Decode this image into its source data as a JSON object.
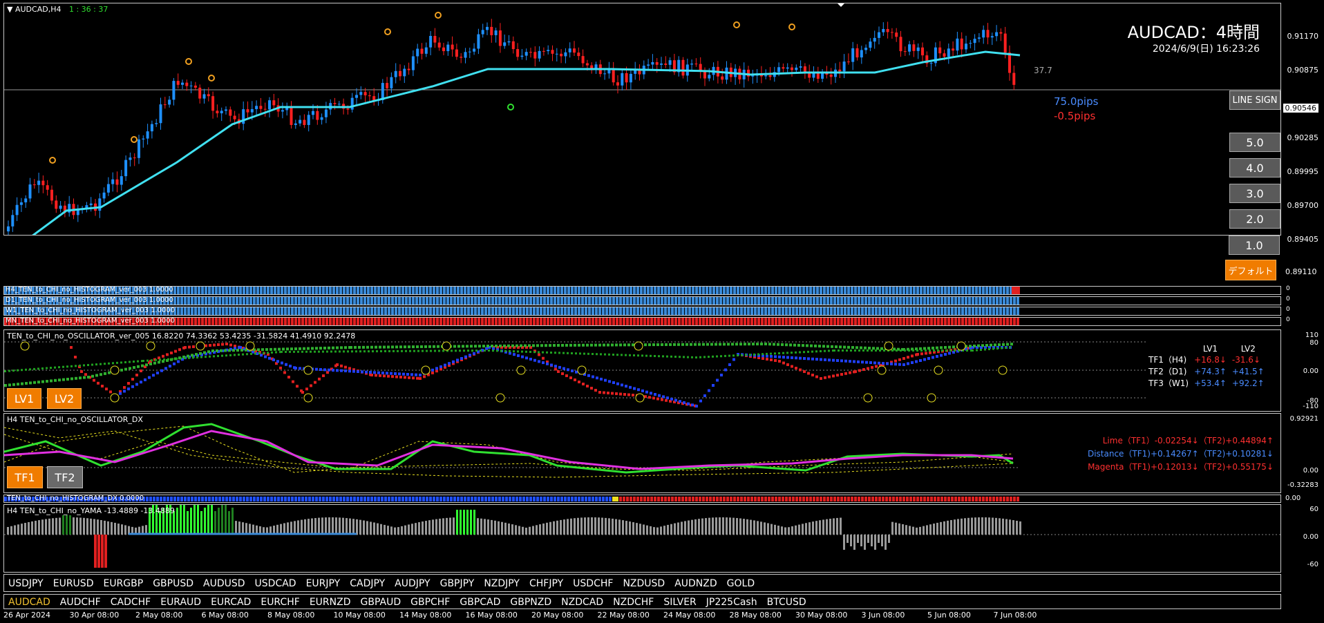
{
  "chart_title": "AUDCAD,H4",
  "countdown": "1 : 36 : 37",
  "symbol_title": "AUDCAD：4時間",
  "datetime": "2024/6/9(日) 16:23:26",
  "spread": "37.7",
  "pips_blue": "75.0pips",
  "pips_red": "-0.5pips",
  "current_price": "0.90546",
  "price_ticks": [
    "0.91170",
    "0.90875",
    "0.90546",
    "0.90285",
    "0.89995",
    "0.89700",
    "0.89405",
    "0.89110"
  ],
  "side_buttons": {
    "line_sign": "LINE SIGN",
    "b5": "5.0",
    "b4": "4.0",
    "b3": "3.0",
    "b2": "2.0",
    "b1": "1.0",
    "default": "デフォルト"
  },
  "histograms": [
    {
      "label": "H4_TEN_to_CHI_no_HISTOGRAM_ver_003 1.0000",
      "scale": "0"
    },
    {
      "label": "D1_TEN_to_CHI_no_HISTOGRAM_ver_003 1.0000",
      "scale": "0"
    },
    {
      "label": "W1_TEN_to_CHI_no_HISTOGRAM_ver_003 1.0000",
      "scale": "0"
    },
    {
      "label": "MN_TEN_to_CHI_no_HISTOGRAM_ver_003 1.0000",
      "scale": "0"
    }
  ],
  "oscillator": {
    "label": "TEN_to_CHI_no_OSCILLATOR_ver_005 16.8220 74.3362 53.4235 -31.5824 41.4910 92.2478",
    "ticks": [
      "110",
      "80",
      "0.00",
      "-80",
      "-110"
    ],
    "lv1": "LV1",
    "lv2": "LV2",
    "header": {
      "lv1": "LV1",
      "lv2": "LV2"
    },
    "rows": [
      {
        "tf": "TF1（H4)",
        "v1": "+16.8↓",
        "v2": "-31.6↓",
        "c1": "#ff3030",
        "c2": "#ff3030"
      },
      {
        "tf": "TF2（D1)",
        "v1": "+74.3↑",
        "v2": "+41.5↑",
        "c1": "#4a8cff",
        "c2": "#4a8cff"
      },
      {
        "tf": "TF3（W1)",
        "v1": "+53.4↑",
        "v2": "+92.2↑",
        "c1": "#4a8cff",
        "c2": "#4a8cff"
      }
    ]
  },
  "dx": {
    "label": "H4 TEN_to_CHI_no_OSCILLATOR_DX",
    "ticks": [
      "0.92921",
      "0.00",
      "-0.32283"
    ],
    "tf1": "TF1",
    "tf2": "TF2",
    "lines": [
      {
        "text": "Lime（TF1）-0.02254↓（TF2)+0.44894↑",
        "color": "#ff3030"
      },
      {
        "text": "Distance（TF1)+0.14267↑（TF2)+0.10281↓",
        "color": "#4a8cff"
      },
      {
        "text": "Magenta（TF1)+0.12013↓（TF2)+0.55175↓",
        "color": "#ff3030"
      }
    ]
  },
  "hist_dx": {
    "label": "TEN_to_CHI_no_HISTOGRAM_DX 0.0000",
    "scale": "0.00"
  },
  "yama": {
    "label": "H4  TEN_to_CHI_no_YAMA -13.4889 -13.4889",
    "ticks": [
      "60",
      "0.00",
      "-60"
    ]
  },
  "symbols_row1": [
    "USDJPY",
    "EURUSD",
    "EURGBP",
    "GBPUSD",
    "AUDUSD",
    "USDCAD",
    "EURJPY",
    "CADJPY",
    "AUDJPY",
    "GBPJPY",
    "NZDJPY",
    "CHFJPY",
    "USDCHF",
    "NZDUSD",
    "AUDNZD",
    "GOLD"
  ],
  "symbols_row2": [
    "AUDCAD",
    "AUDCHF",
    "CADCHF",
    "EURAUD",
    "EURCAD",
    "EURCHF",
    "EURNZD",
    "GBPAUD",
    "GBPCHF",
    "GBPCAD",
    "GBPNZD",
    "NZDCAD",
    "NZDCHF",
    "SILVER",
    "JP225Cash",
    "BTCUSD"
  ],
  "active_symbol": "AUDCAD",
  "time_axis": [
    "26 Apr 2024",
    "30 Apr 08:00",
    "2 May 08:00",
    "6 May 08:00",
    "8 May 08:00",
    "10 May 08:00",
    "14 May 08:00",
    "16 May 08:00",
    "20 May 08:00",
    "22 May 08:00",
    "24 May 08:00",
    "28 May 08:00",
    "30 May 08:00",
    "3 Jun 08:00",
    "5 Jun 08:00",
    "7 Jun 08:00"
  ],
  "colors": {
    "bull": "#1e90ff",
    "bear": "#ff2020",
    "ma": "#40e0f0",
    "accent": "#f07c00"
  }
}
